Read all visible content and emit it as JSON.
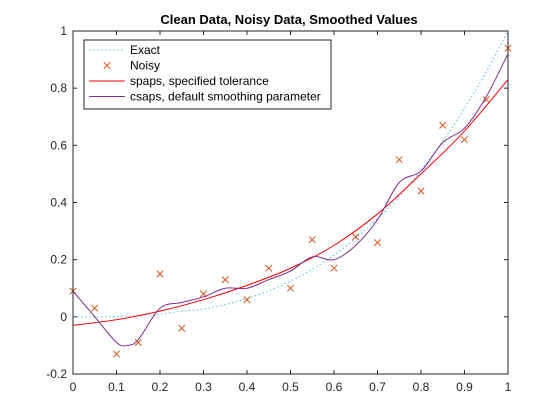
{
  "chart_data": {
    "type": "line",
    "title": "Clean Data, Noisy Data, Smoothed Values",
    "xlabel": "",
    "ylabel": "",
    "xlim": [
      0,
      1
    ],
    "ylim": [
      -0.2,
      1
    ],
    "xticks": [
      0,
      0.1,
      0.2,
      0.3,
      0.4,
      0.5,
      0.6,
      0.7,
      0.8,
      0.9,
      1
    ],
    "xtick_labels": [
      "0",
      "0.1",
      "0.2",
      "0.3",
      "0.4",
      "0.5",
      "0.6",
      "0.7",
      "0.8",
      "0.9",
      "1"
    ],
    "yticks": [
      -0.2,
      0,
      0.2,
      0.4,
      0.6,
      0.8,
      1
    ],
    "ytick_labels": [
      "-0.2",
      "0",
      "0.2",
      "0.4",
      "0.6",
      "0.8",
      "1"
    ],
    "grid": false,
    "legend_position": "top-left",
    "series": [
      {
        "name": "Exact",
        "style": "dotted",
        "color": "#4DBEEE",
        "x": [
          0,
          0.05,
          0.1,
          0.15,
          0.2,
          0.25,
          0.3,
          0.35,
          0.4,
          0.45,
          0.5,
          0.55,
          0.6,
          0.65,
          0.7,
          0.75,
          0.8,
          0.85,
          0.9,
          0.95,
          1
        ],
        "y": [
          0,
          0,
          0.001,
          0.004,
          0.01,
          0.02,
          0.027,
          0.043,
          0.064,
          0.091,
          0.125,
          0.166,
          0.216,
          0.275,
          0.343,
          0.422,
          0.512,
          0.614,
          0.729,
          0.857,
          1.0
        ]
      },
      {
        "name": "Noisy",
        "style": "markers",
        "marker": "x",
        "color": "#D95319",
        "x": [
          0,
          0.05,
          0.1,
          0.15,
          0.2,
          0.25,
          0.3,
          0.35,
          0.4,
          0.45,
          0.5,
          0.55,
          0.6,
          0.65,
          0.7,
          0.75,
          0.8,
          0.85,
          0.9,
          0.95,
          1
        ],
        "y": [
          0.09,
          0.03,
          -0.13,
          -0.09,
          0.15,
          -0.04,
          0.08,
          0.13,
          0.06,
          0.17,
          0.1,
          0.27,
          0.17,
          0.28,
          0.26,
          0.55,
          0.44,
          0.67,
          0.62,
          0.76,
          0.94
        ]
      },
      {
        "name": "spaps, specified tolerance",
        "style": "solid",
        "color": "#FF0000",
        "x": [
          0,
          0.1,
          0.2,
          0.3,
          0.4,
          0.5,
          0.6,
          0.7,
          0.8,
          0.9,
          1
        ],
        "y": [
          -0.03,
          -0.01,
          0.02,
          0.06,
          0.11,
          0.17,
          0.25,
          0.36,
          0.5,
          0.65,
          0.83
        ]
      },
      {
        "name": "csaps, default smoothing parameter",
        "style": "solid",
        "color": "#7E2F8E",
        "x": [
          0,
          0.05,
          0.1,
          0.125,
          0.15,
          0.2,
          0.25,
          0.3,
          0.35,
          0.4,
          0.45,
          0.5,
          0.55,
          0.6,
          0.65,
          0.7,
          0.75,
          0.8,
          0.85,
          0.9,
          0.95,
          1
        ],
        "y": [
          0.09,
          0.0,
          -0.09,
          -0.1,
          -0.08,
          0.03,
          0.05,
          0.07,
          0.1,
          0.1,
          0.13,
          0.16,
          0.21,
          0.2,
          0.25,
          0.34,
          0.47,
          0.51,
          0.61,
          0.66,
          0.77,
          0.92
        ]
      }
    ]
  }
}
